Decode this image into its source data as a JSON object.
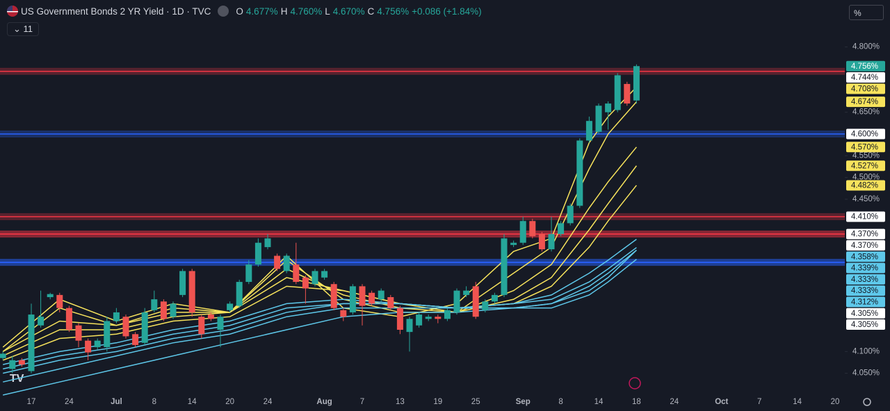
{
  "chart_data": {
    "type": "candlestick",
    "title": "US Government Bonds 2 YR Yield · 1D · TVC",
    "legend": {
      "o": "O",
      "open": "4.677%",
      "h": "H",
      "high": "4.760%",
      "l": "L",
      "low": "4.670%",
      "c": "C",
      "close": "4.756%",
      "change": "+0.086 (+1.84%)"
    },
    "indicator_count": "11",
    "scale_unit": "%",
    "ylim": [
      4.0,
      4.9
    ],
    "yticks": [
      {
        "value": 4.8,
        "label": "4.800%"
      },
      {
        "value": 4.65,
        "label": "4.650%"
      },
      {
        "value": 4.55,
        "label": "4.550%"
      },
      {
        "value": 4.5,
        "label": "4.500%"
      },
      {
        "value": 4.45,
        "label": "4.450%"
      },
      {
        "value": 4.1,
        "label": "4.100%"
      },
      {
        "value": 4.05,
        "label": "4.050%"
      }
    ],
    "up_color": "#26a69a",
    "down_color": "#ef5350",
    "categories": [
      null,
      null,
      null,
      "17",
      null,
      null,
      null,
      "24",
      null,
      null,
      null,
      null,
      "Jul",
      null,
      null,
      null,
      "8",
      null,
      null,
      null,
      "14",
      null,
      null,
      null,
      "20",
      null,
      null,
      null,
      "24",
      null,
      null,
      null,
      null,
      null,
      "Aug",
      null,
      null,
      null,
      "7",
      null,
      null,
      null,
      "13",
      null,
      null,
      null,
      "19",
      null,
      null,
      null,
      "25",
      null,
      null,
      null,
      null,
      "Sep",
      null,
      null,
      null,
      "8",
      null,
      null,
      null,
      "14",
      null,
      null,
      null,
      "18",
      null,
      null,
      null,
      "24",
      null,
      null,
      null,
      null,
      "Oct",
      null,
      null,
      null,
      "7",
      null,
      null,
      null,
      "14",
      null,
      null,
      null,
      "20"
    ],
    "open": [
      4.085,
      4.06,
      4.08,
      4.055,
      4.16,
      4.225,
      4.23,
      4.2,
      4.16,
      4.125,
      4.11,
      4.11,
      4.17,
      4.18,
      4.14,
      4.12,
      4.195,
      4.215,
      4.18,
      4.23,
      4.285,
      4.18,
      4.185,
      4.15,
      4.195,
      4.205,
      4.26,
      4.3,
      4.34,
      4.32,
      4.285,
      4.3,
      4.27,
      4.255,
      4.27,
      4.255,
      4.195,
      4.19,
      4.25,
      4.235,
      4.22,
      4.225,
      4.2,
      4.145,
      4.16,
      4.175,
      4.18,
      4.175,
      4.19,
      4.23,
      4.25,
      4.195,
      4.215,
      4.23,
      4.345,
      4.35,
      4.4,
      4.37,
      4.335,
      4.37,
      4.395,
      4.435,
      4.585,
      4.605,
      4.65,
      4.655,
      4.715,
      4.677,
      null,
      null,
      null,
      null,
      null,
      null,
      null,
      null,
      null,
      null,
      null,
      null,
      null,
      null,
      null,
      null,
      null,
      null,
      null,
      null,
      null
    ],
    "high": [
      4.1,
      4.09,
      4.085,
      4.21,
      4.24,
      4.235,
      4.235,
      4.205,
      4.165,
      4.13,
      4.13,
      4.18,
      4.2,
      4.185,
      4.145,
      4.2,
      4.24,
      4.22,
      4.215,
      4.29,
      4.29,
      4.185,
      4.19,
      4.185,
      4.215,
      4.265,
      4.31,
      4.36,
      4.37,
      4.325,
      4.325,
      4.35,
      4.275,
      4.29,
      4.29,
      4.26,
      4.2,
      4.255,
      4.255,
      4.24,
      4.245,
      4.23,
      4.205,
      4.18,
      4.19,
      4.185,
      4.185,
      4.2,
      4.245,
      4.25,
      4.26,
      4.22,
      4.235,
      4.37,
      4.355,
      4.41,
      4.405,
      4.375,
      4.41,
      4.4,
      4.44,
      4.59,
      4.64,
      4.67,
      4.675,
      4.74,
      4.72,
      4.76,
      null,
      null,
      null,
      null,
      null,
      null,
      null,
      null,
      null,
      null,
      null,
      null,
      null,
      null,
      null,
      null,
      null,
      null,
      null,
      null,
      null
    ],
    "low": [
      4.08,
      4.05,
      4.065,
      4.05,
      4.155,
      4.22,
      4.19,
      4.145,
      4.11,
      4.08,
      4.105,
      4.1,
      4.165,
      4.13,
      4.11,
      4.115,
      4.19,
      4.17,
      4.175,
      4.225,
      4.18,
      4.13,
      4.17,
      4.11,
      4.19,
      4.2,
      4.255,
      4.295,
      4.335,
      4.285,
      4.28,
      4.255,
      4.21,
      4.25,
      4.265,
      4.195,
      4.17,
      4.185,
      4.16,
      4.205,
      4.215,
      4.195,
      4.14,
      4.1,
      4.155,
      4.17,
      4.165,
      4.17,
      4.185,
      4.225,
      4.175,
      4.19,
      4.21,
      4.225,
      4.34,
      4.345,
      4.36,
      4.33,
      4.33,
      4.365,
      4.39,
      4.43,
      4.58,
      4.6,
      4.61,
      4.65,
      4.665,
      4.67,
      null,
      null,
      null,
      null,
      null,
      null,
      null,
      null,
      null,
      null,
      null,
      null,
      null,
      null,
      null,
      null,
      null,
      null,
      null,
      null,
      null
    ],
    "close": [
      4.095,
      4.08,
      4.07,
      4.185,
      4.18,
      4.232,
      4.2,
      4.15,
      4.125,
      4.098,
      4.125,
      4.17,
      4.19,
      4.135,
      4.115,
      4.19,
      4.22,
      4.175,
      4.21,
      4.285,
      4.19,
      4.14,
      4.175,
      4.18,
      4.21,
      4.26,
      4.3,
      4.35,
      4.36,
      4.29,
      4.32,
      4.26,
      4.245,
      4.285,
      4.285,
      4.2,
      4.18,
      4.25,
      4.205,
      4.21,
      4.24,
      4.2,
      4.15,
      4.175,
      4.185,
      4.18,
      4.175,
      4.195,
      4.24,
      4.24,
      4.18,
      4.215,
      4.23,
      4.36,
      4.35,
      4.4,
      4.365,
      4.335,
      4.37,
      4.395,
      4.435,
      4.585,
      4.63,
      4.665,
      4.67,
      4.735,
      4.67,
      4.756,
      null,
      null,
      null,
      null,
      null,
      null,
      null,
      null,
      null,
      null,
      null,
      null,
      null,
      null,
      null,
      null,
      null,
      null,
      null,
      null,
      null
    ],
    "close_label": "4.756%",
    "levels": [
      {
        "value": 4.744,
        "label": "4.744%",
        "color": "#f23645"
      },
      {
        "value": 4.6,
        "label": "4.600%",
        "color": "#2962ff"
      },
      {
        "value": 4.41,
        "label": "4.410%",
        "color": "#f23645"
      },
      {
        "value": 4.37,
        "label": "4.370%",
        "color": "#f23645"
      },
      {
        "value": 4.37,
        "label": "4.370%",
        "color": "#f23645"
      },
      {
        "value": 4.305,
        "label": "4.305%",
        "color": "#2962ff"
      },
      {
        "value": 4.305,
        "label": "4.305%",
        "color": "#2962ff"
      }
    ],
    "moving_averages": {
      "index": [
        0,
        6,
        12,
        18,
        24,
        30,
        36,
        42,
        48,
        54,
        58,
        62,
        64,
        67
      ],
      "series": [
        {
          "color": "#f7e35c",
          "values": [
            4.11,
            4.22,
            4.17,
            4.21,
            4.19,
            4.32,
            4.2,
            4.18,
            4.21,
            4.33,
            4.36,
            4.58,
            4.64,
            4.708
          ],
          "badge_label": "4.708%"
        },
        {
          "color": "#f7e35c",
          "values": [
            4.1,
            4.2,
            4.16,
            4.2,
            4.19,
            4.31,
            4.22,
            4.19,
            4.19,
            4.28,
            4.34,
            4.52,
            4.6,
            4.674
          ],
          "badge_label": "4.674%"
        },
        {
          "color": "#f7e35c",
          "values": [
            4.1,
            4.17,
            4.16,
            4.19,
            4.19,
            4.29,
            4.23,
            4.2,
            4.19,
            4.24,
            4.3,
            4.43,
            4.49,
            4.57
          ],
          "badge_label": "4.570%"
        },
        {
          "color": "#f7e35c",
          "values": [
            4.09,
            4.15,
            4.15,
            4.18,
            4.19,
            4.27,
            4.24,
            4.21,
            4.19,
            4.22,
            4.27,
            4.38,
            4.44,
            4.527
          ],
          "badge_label": "4.527%"
        },
        {
          "color": "#f7e35c",
          "values": [
            4.08,
            4.13,
            4.14,
            4.17,
            4.18,
            4.25,
            4.24,
            4.21,
            4.2,
            4.21,
            4.25,
            4.34,
            4.4,
            4.482
          ],
          "badge_label": "4.482%"
        },
        {
          "color": "#5ec8ea",
          "values": [
            4.07,
            4.1,
            4.12,
            4.15,
            4.17,
            4.21,
            4.22,
            4.21,
            4.2,
            4.21,
            4.23,
            4.28,
            4.31,
            4.358
          ],
          "badge_label": "4.358%"
        },
        {
          "color": "#5ec8ea",
          "values": [
            4.06,
            4.09,
            4.11,
            4.14,
            4.16,
            4.2,
            4.21,
            4.21,
            4.2,
            4.21,
            4.22,
            4.26,
            4.29,
            4.339
          ],
          "badge_label": "4.339%"
        },
        {
          "color": "#5ec8ea",
          "values": [
            4.05,
            4.08,
            4.1,
            4.13,
            4.15,
            4.19,
            4.21,
            4.21,
            4.2,
            4.2,
            4.21,
            4.25,
            4.28,
            4.333
          ],
          "badge_label": "4.333%"
        },
        {
          "color": "#5ec8ea",
          "values": [
            4.03,
            4.06,
            4.09,
            4.12,
            4.14,
            4.18,
            4.2,
            4.2,
            4.2,
            4.2,
            4.21,
            4.24,
            4.27,
            4.333
          ],
          "badge_label": "4.333%"
        },
        {
          "color": "#5ec8ea",
          "values": [
            4.0,
            4.03,
            4.06,
            4.09,
            4.12,
            4.15,
            4.18,
            4.19,
            4.19,
            4.2,
            4.2,
            4.23,
            4.26,
            4.312
          ],
          "badge_label": "4.312%"
        }
      ]
    }
  }
}
